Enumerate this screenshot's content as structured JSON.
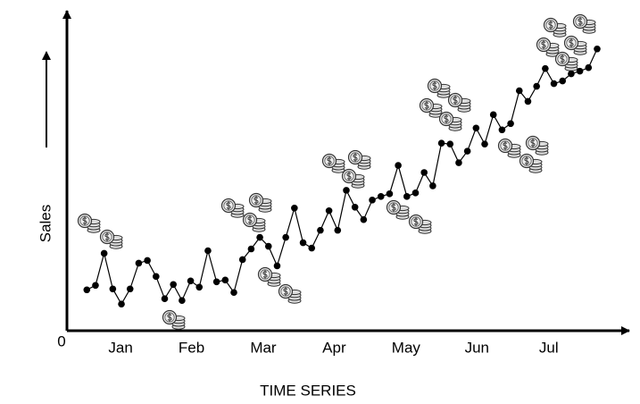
{
  "chart_data": {
    "type": "line",
    "y_label": "Sales",
    "x_label": "TIME SERIES",
    "origin_label": "0",
    "x": [
      0,
      1,
      2,
      3,
      4,
      5,
      6,
      7,
      8,
      9,
      10,
      11,
      12,
      13,
      14,
      15,
      16,
      17,
      18,
      19,
      20,
      21,
      22,
      23,
      24,
      25,
      26,
      27,
      28,
      29,
      30,
      31,
      32,
      33,
      34,
      35,
      36,
      37,
      38,
      39,
      40,
      41,
      42,
      43,
      44,
      45,
      46,
      47,
      48,
      49,
      50,
      51,
      52,
      53,
      54,
      55,
      56,
      57,
      58,
      59
    ],
    "series": [
      {
        "color": "#000000",
        "values": [
          46,
          51,
          87,
          47,
          30,
          47,
          76,
          79,
          61,
          36,
          52,
          34,
          56,
          49,
          90,
          55,
          57,
          43,
          80,
          92,
          105,
          95,
          73,
          105,
          138,
          99,
          93,
          113,
          135,
          113,
          158,
          139,
          125,
          147,
          151,
          154,
          186,
          151,
          155,
          178,
          163,
          211,
          210,
          189,
          202,
          228,
          210,
          243,
          226,
          233,
          270,
          258,
          275,
          295,
          278,
          281,
          289,
          292,
          296,
          317
        ]
      }
    ],
    "xlim": [
      -2.3,
      62.2
    ],
    "ylim": [
      0,
      360
    ],
    "xticks": [
      {
        "value": 3.9,
        "label": "Jan"
      },
      {
        "value": 12.1,
        "label": "Feb"
      },
      {
        "value": 20.4,
        "label": "Mar"
      },
      {
        "value": 28.6,
        "label": "Apr"
      },
      {
        "value": 36.9,
        "label": "May"
      },
      {
        "value": 45.1,
        "label": "Jun"
      },
      {
        "value": 53.4,
        "label": "Jul"
      }
    ]
  }
}
